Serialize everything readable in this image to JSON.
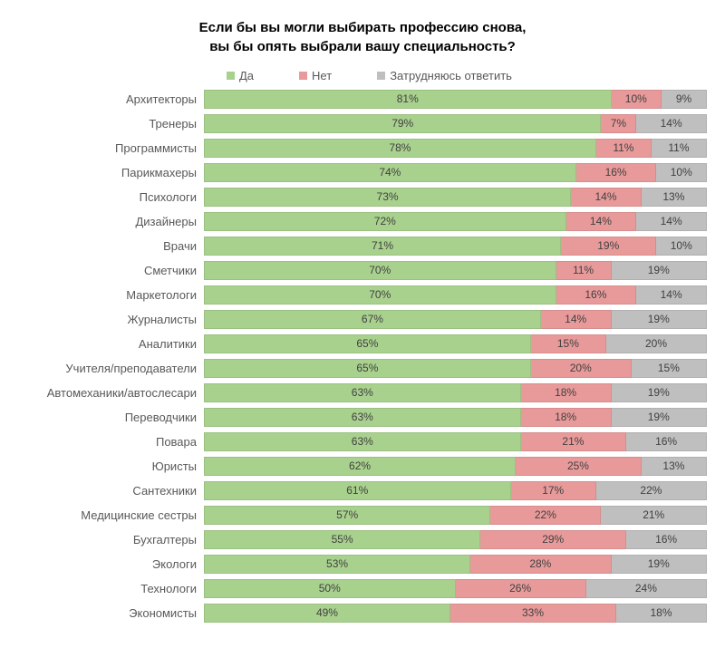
{
  "chart": {
    "type": "stacked-bar-horizontal",
    "title_line1": "Если бы вы могли выбирать профессию снова,",
    "title_line2": "вы бы опять выбрали вашу специальность?",
    "title_fontsize": 15,
    "label_fontsize": 13,
    "value_fontsize": 12,
    "background_color": "#ffffff",
    "label_color": "#595959",
    "value_color": "#404040",
    "colors": {
      "yes": "#a9d18e",
      "no": "#e89a9a",
      "unsure": "#bfbfbf"
    },
    "legend": [
      {
        "key": "yes",
        "label": "Да"
      },
      {
        "key": "no",
        "label": "Нет"
      },
      {
        "key": "unsure",
        "label": "Затрудняюсь ответить"
      }
    ],
    "rows": [
      {
        "label": "Архитекторы",
        "yes": 81,
        "no": 10,
        "unsure": 9
      },
      {
        "label": "Тренеры",
        "yes": 79,
        "no": 7,
        "unsure": 14
      },
      {
        "label": "Программисты",
        "yes": 78,
        "no": 11,
        "unsure": 11
      },
      {
        "label": "Парикмахеры",
        "yes": 74,
        "no": 16,
        "unsure": 10
      },
      {
        "label": "Психологи",
        "yes": 73,
        "no": 14,
        "unsure": 13
      },
      {
        "label": "Дизайнеры",
        "yes": 72,
        "no": 14,
        "unsure": 14
      },
      {
        "label": "Врачи",
        "yes": 71,
        "no": 19,
        "unsure": 10
      },
      {
        "label": "Сметчики",
        "yes": 70,
        "no": 11,
        "unsure": 19
      },
      {
        "label": "Маркетологи",
        "yes": 70,
        "no": 16,
        "unsure": 14
      },
      {
        "label": "Журналисты",
        "yes": 67,
        "no": 14,
        "unsure": 19
      },
      {
        "label": "Аналитики",
        "yes": 65,
        "no": 15,
        "unsure": 20
      },
      {
        "label": "Учителя/преподаватели",
        "yes": 65,
        "no": 20,
        "unsure": 15
      },
      {
        "label": "Автомеханики/автослесари",
        "yes": 63,
        "no": 18,
        "unsure": 19
      },
      {
        "label": "Переводчики",
        "yes": 63,
        "no": 18,
        "unsure": 19
      },
      {
        "label": "Повара",
        "yes": 63,
        "no": 21,
        "unsure": 16
      },
      {
        "label": "Юристы",
        "yes": 62,
        "no": 25,
        "unsure": 13
      },
      {
        "label": "Сантехники",
        "yes": 61,
        "no": 17,
        "unsure": 22
      },
      {
        "label": "Медицинские сестры",
        "yes": 57,
        "no": 22,
        "unsure": 21
      },
      {
        "label": "Бухгалтеры",
        "yes": 55,
        "no": 29,
        "unsure": 16
      },
      {
        "label": "Экологи",
        "yes": 53,
        "no": 28,
        "unsure": 19
      },
      {
        "label": "Технологи",
        "yes": 50,
        "no": 26,
        "unsure": 24
      },
      {
        "label": "Экономисты",
        "yes": 49,
        "no": 33,
        "unsure": 18
      }
    ]
  }
}
